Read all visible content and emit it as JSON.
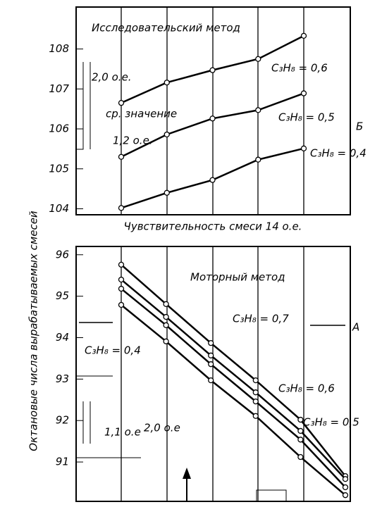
{
  "chart_data": [
    {
      "type": "line",
      "title": "Исследовательский метод",
      "xlabel": "Чувствительность смеси 14 о.е.",
      "ylabel": "Октановые числа вырабатываемых смесей",
      "categories": [
        null,
        null,
        null,
        null,
        null
      ],
      "ylim": [
        103.85,
        109.05
      ],
      "yticks": [
        104,
        105,
        106,
        107,
        108
      ],
      "annotations": [
        "ср. значение",
        "2,0 о.е.",
        "1,2 о.е.",
        "Б"
      ],
      "series": [
        {
          "name": "C₃H₈ = 0,6",
          "color": "#000000",
          "values": [
            106.65,
            107.16,
            107.47,
            107.75,
            108.33
          ]
        },
        {
          "name": "C₃H₈ = 0,5",
          "color": "#000000",
          "values": [
            105.3,
            105.86,
            106.26,
            106.47,
            106.89
          ]
        },
        {
          "name": "C₃H₈ = 0,4",
          "color": "#000000",
          "values": [
            104.02,
            104.4,
            104.72,
            105.23,
            105.51
          ]
        }
      ]
    },
    {
      "type": "line",
      "title": "Моторный метод",
      "categories": [
        null,
        null,
        null,
        null,
        null,
        null
      ],
      "ylim": [
        90.05,
        96.2
      ],
      "yticks": [
        91,
        92,
        93,
        94,
        95,
        96
      ],
      "annotations": [
        "А",
        "1,1 о.е",
        "2,0 о.е"
      ],
      "series": [
        {
          "name": "C₃H₈ = 0,7",
          "color": "#000000",
          "values": [
            95.76,
            94.81,
            93.87,
            92.97,
            92.02,
            90.66
          ]
        },
        {
          "name": "C₃H₈ = 0,6",
          "color": "#000000",
          "values": [
            95.4,
            94.5,
            93.57,
            92.68,
            91.75,
            90.59
          ]
        },
        {
          "name": "C₃H₈ = 0,5",
          "color": "#000000",
          "values": [
            95.18,
            94.3,
            93.36,
            92.46,
            91.54,
            90.39
          ]
        },
        {
          "name": "C₃H₈ = 0,4",
          "color": "#000000",
          "values": [
            94.79,
            93.91,
            92.97,
            92.11,
            91.12,
            90.2
          ]
        }
      ]
    }
  ]
}
